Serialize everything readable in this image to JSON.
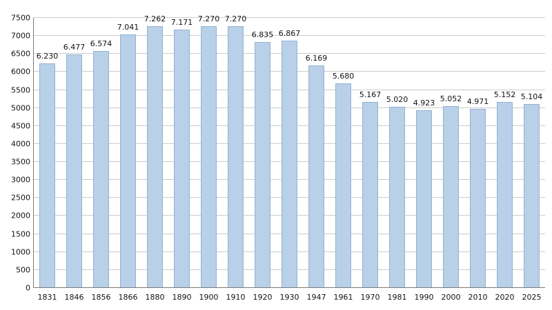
{
  "chart_data": {
    "type": "bar",
    "title": "",
    "xlabel": "",
    "ylabel": "",
    "categories": [
      "1831",
      "1846",
      "1856",
      "1866",
      "1880",
      "1890",
      "1900",
      "1910",
      "1920",
      "1930",
      "1947",
      "1961",
      "1970",
      "1981",
      "1990",
      "2000",
      "2010",
      "2020",
      "2025"
    ],
    "values": [
      6230,
      6477,
      6574,
      7041,
      7262,
      7171,
      7270,
      7270,
      6835,
      6867,
      6169,
      5680,
      5167,
      5020,
      4923,
      5052,
      4971,
      5152,
      5104
    ],
    "value_labels": [
      "6.230",
      "6.477",
      "6.574",
      "7.041",
      "7.262",
      "7.171",
      "7.270",
      "7.270",
      "6.835",
      "6.867",
      "6.169",
      "5.680",
      "5.167",
      "5.020",
      "4.923",
      "5.052",
      "4.971",
      "5.152",
      "5.104"
    ],
    "ylim": [
      0,
      7500
    ],
    "y_ticks": [
      0,
      500,
      1000,
      1500,
      2000,
      2500,
      3000,
      3500,
      4000,
      4500,
      5000,
      5500,
      6000,
      6500,
      7000,
      7500
    ],
    "grid": true,
    "legend": "none",
    "colors": {
      "bar_fill": "#b8d0e8",
      "bar_border": "#94b2d2",
      "gridline": "#cccccc",
      "axis": "#7a7a7a",
      "text": "#111111",
      "background": "#ffffff"
    }
  }
}
